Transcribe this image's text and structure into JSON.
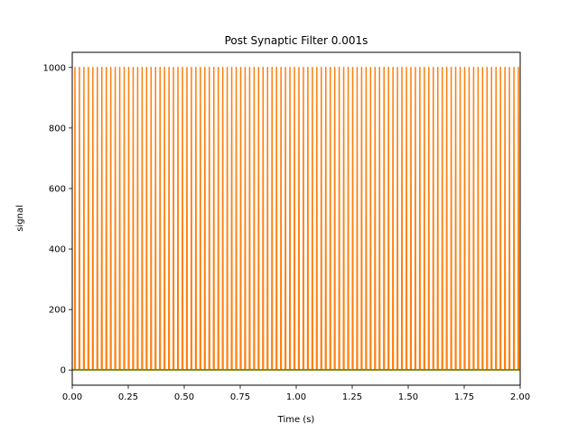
{
  "chart_data": {
    "type": "line",
    "title": "Post Synaptic Filter 0.001s",
    "xlabel": "Time (s)",
    "ylabel": "signal",
    "xlim": [
      0,
      2
    ],
    "ylim": [
      -50,
      1050
    ],
    "xticks": [
      0.0,
      0.25,
      0.5,
      0.75,
      1.0,
      1.25,
      1.5,
      1.75,
      2.0
    ],
    "xtick_labels": [
      "0.00",
      "0.25",
      "0.50",
      "0.75",
      "1.00",
      "1.25",
      "1.50",
      "1.75",
      "2.00"
    ],
    "yticks": [
      0,
      200,
      400,
      600,
      800,
      1000
    ],
    "ytick_labels": [
      "0",
      "200",
      "400",
      "600",
      "800",
      "1000"
    ],
    "grid": false,
    "series": [
      {
        "color": "#1f77b4",
        "kind": "baseline",
        "x": [
          0,
          2
        ],
        "values": [
          0,
          0
        ]
      },
      {
        "color": "#ff7f0e",
        "kind": "spike_train",
        "spike_times": [
          0.012,
          0.032,
          0.052,
          0.072,
          0.092,
          0.112,
          0.132,
          0.152,
          0.172,
          0.192,
          0.212,
          0.232,
          0.252,
          0.272,
          0.292,
          0.312,
          0.332,
          0.352,
          0.372,
          0.392,
          0.412,
          0.432,
          0.452,
          0.472,
          0.492,
          0.512,
          0.532,
          0.552,
          0.572,
          0.592,
          0.612,
          0.632,
          0.652,
          0.672,
          0.692,
          0.712,
          0.732,
          0.752,
          0.772,
          0.792,
          0.812,
          0.832,
          0.852,
          0.872,
          0.892,
          0.912,
          0.932,
          0.952,
          0.972,
          0.992,
          1.012,
          1.032,
          1.052,
          1.072,
          1.092,
          1.112,
          1.132,
          1.152,
          1.172,
          1.192,
          1.212,
          1.232,
          1.252,
          1.272,
          1.292,
          1.312,
          1.332,
          1.352,
          1.372,
          1.392,
          1.412,
          1.432,
          1.452,
          1.472,
          1.492,
          1.512,
          1.532,
          1.552,
          1.572,
          1.592,
          1.612,
          1.632,
          1.652,
          1.672,
          1.692,
          1.712,
          1.732,
          1.752,
          1.772,
          1.792,
          1.812,
          1.832,
          1.852,
          1.872,
          1.892,
          1.912,
          1.932,
          1.952,
          1.972,
          1.992
        ],
        "peak": 1000,
        "baseline": 0
      },
      {
        "color": "#2ca02c",
        "kind": "baseline",
        "x": [
          0,
          2
        ],
        "values": [
          1,
          1
        ]
      }
    ]
  }
}
